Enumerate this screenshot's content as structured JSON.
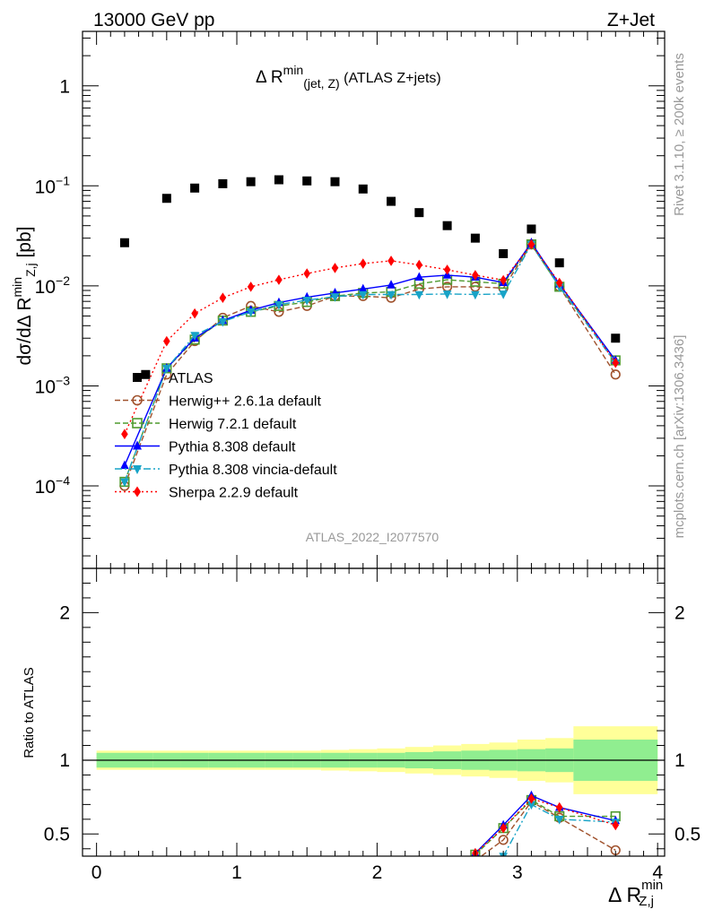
{
  "header": {
    "left": "13000 GeV pp",
    "right": "Z+Jet"
  },
  "side_text": {
    "rivet": "Rivet 3.1.10, ≥ 200k events",
    "mcplots": "mcplots.cern.ch [arXiv:1306.3436]"
  },
  "chart_data": [
    {
      "panel": "main",
      "type": "scatter",
      "title": {
        "prefix": "Δ R",
        "sup": "min",
        "sub": "(jet, Z)",
        "suffix": " (ATLAS Z+jets)"
      },
      "ylabel": {
        "prefix": "dσ/dΔ R",
        "sup": "min",
        "sub": "Z,j",
        "suffix": " [pb]"
      },
      "xlim": [
        -0.1,
        4.05
      ],
      "ylim": [
        1.5e-05,
        3.5
      ],
      "yscale": "log",
      "y_tick_labels": [
        {
          "v": 1,
          "base": "1",
          "exp": ""
        },
        {
          "v": 0.1,
          "base": "10",
          "exp": "−1"
        },
        {
          "v": 0.01,
          "base": "10",
          "exp": "−2"
        },
        {
          "v": 0.001,
          "base": "10",
          "exp": "−3"
        },
        {
          "v": 0.0001,
          "base": "10",
          "exp": "−4"
        }
      ],
      "watermark": "ATLAS_2022_I2077570",
      "legend_position": "left-middle",
      "series": [
        {
          "name": "ATLAS",
          "color": "#000000",
          "marker": "square",
          "line": "none",
          "x": [
            0.2,
            0.35,
            0.5,
            0.7,
            0.9,
            1.1,
            1.3,
            1.5,
            1.7,
            1.9,
            2.1,
            2.3,
            2.5,
            2.7,
            2.9,
            3.1,
            3.3,
            3.7
          ],
          "y": [
            0.027,
            0.0013,
            0.075,
            0.095,
            0.105,
            0.11,
            0.115,
            0.112,
            0.11,
            0.093,
            0.07,
            0.054,
            0.04,
            0.03,
            0.021,
            0.037,
            0.017,
            0.003
          ]
        },
        {
          "name": "Herwig++ 2.6.1a default",
          "color": "#a0522d",
          "marker": "circle-open",
          "line": "dashed",
          "x": [
            0.2,
            0.5,
            0.7,
            0.9,
            1.1,
            1.3,
            1.5,
            1.7,
            1.9,
            2.1,
            2.3,
            2.5,
            2.7,
            2.9,
            3.1,
            3.3,
            3.7
          ],
          "y": [
            0.0001,
            0.0013,
            0.0028,
            0.0048,
            0.0063,
            0.0055,
            0.0063,
            0.0079,
            0.0079,
            0.0076,
            0.0093,
            0.0098,
            0.0098,
            0.0095,
            0.026,
            0.0098,
            0.0013
          ]
        },
        {
          "name": "Herwig 7.2.1 default",
          "color": "#4f9a2f",
          "marker": "square-open",
          "line": "dashed",
          "x": [
            0.2,
            0.5,
            0.7,
            0.9,
            1.1,
            1.3,
            1.5,
            1.7,
            1.9,
            2.1,
            2.3,
            2.5,
            2.7,
            2.9,
            3.1,
            3.3,
            3.7
          ],
          "y": [
            0.00011,
            0.0015,
            0.0029,
            0.0045,
            0.0055,
            0.0063,
            0.0069,
            0.0079,
            0.0085,
            0.0087,
            0.0105,
            0.0115,
            0.011,
            0.0105,
            0.026,
            0.0098,
            0.0018
          ]
        },
        {
          "name": "Pythia 8.308 default",
          "color": "#0000ff",
          "marker": "triangle-up",
          "line": "solid",
          "x": [
            0.2,
            0.5,
            0.7,
            0.9,
            1.1,
            1.3,
            1.5,
            1.7,
            1.9,
            2.1,
            2.3,
            2.5,
            2.7,
            2.9,
            3.1,
            3.3,
            3.7
          ],
          "y": [
            0.00016,
            0.0015,
            0.003,
            0.0045,
            0.0057,
            0.0068,
            0.0077,
            0.0085,
            0.0093,
            0.0102,
            0.0122,
            0.0128,
            0.0122,
            0.0108,
            0.027,
            0.0104,
            0.0018
          ]
        },
        {
          "name": "Pythia 8.308 vincia-default",
          "color": "#17a3c7",
          "marker": "triangle-down",
          "line": "dashdot",
          "x": [
            0.2,
            0.5,
            0.7,
            0.9,
            1.1,
            1.3,
            1.5,
            1.7,
            1.9,
            2.1,
            2.3,
            2.5,
            2.7,
            2.9,
            3.1,
            3.3,
            3.7
          ],
          "y": [
            0.00011,
            0.0015,
            0.0032,
            0.0044,
            0.0055,
            0.0065,
            0.0072,
            0.0078,
            0.0082,
            0.0082,
            0.0082,
            0.0083,
            0.0082,
            0.0083,
            0.026,
            0.0098,
            0.0017
          ]
        },
        {
          "name": "Sherpa 2.2.9 default",
          "color": "#ff0000",
          "marker": "diamond",
          "line": "dotted",
          "x": [
            0.2,
            0.5,
            0.7,
            0.9,
            1.1,
            1.3,
            1.5,
            1.7,
            1.9,
            2.1,
            2.3,
            2.5,
            2.7,
            2.9,
            3.1,
            3.3,
            3.7
          ],
          "y": [
            0.00033,
            0.0028,
            0.0053,
            0.0076,
            0.0098,
            0.0115,
            0.0133,
            0.0151,
            0.0167,
            0.0178,
            0.0162,
            0.0145,
            0.0128,
            0.0114,
            0.026,
            0.0107,
            0.0017
          ]
        }
      ]
    },
    {
      "panel": "ratio",
      "type": "line",
      "ylabel": "Ratio to ATLAS",
      "xlabel": {
        "prefix": "Δ R",
        "sup": "min",
        "sub": "Z,j"
      },
      "xlim": [
        -0.1,
        4.05
      ],
      "ylim": [
        0.35,
        2.3
      ],
      "x_ticks": [
        0,
        1,
        2,
        3,
        4
      ],
      "y_ticks": [
        0.5,
        1,
        2
      ],
      "reference_line": 1,
      "bands": {
        "edges": [
          0.0,
          0.4,
          0.6,
          0.8,
          1.0,
          1.2,
          1.4,
          1.6,
          1.8,
          2.0,
          2.2,
          2.4,
          2.6,
          2.8,
          3.0,
          3.2,
          3.4,
          4.0
        ],
        "inner_color": "#90ee90",
        "outer_color": "#ffff99",
        "inner": [
          0.05,
          0.05,
          0.05,
          0.05,
          0.05,
          0.05,
          0.05,
          0.05,
          0.05,
          0.05,
          0.055,
          0.06,
          0.065,
          0.07,
          0.075,
          0.08,
          0.14
        ],
        "outer": [
          0.065,
          0.065,
          0.065,
          0.065,
          0.065,
          0.065,
          0.065,
          0.07,
          0.075,
          0.08,
          0.09,
          0.1,
          0.11,
          0.12,
          0.14,
          0.15,
          0.23
        ]
      },
      "series": [
        {
          "name": "Herwig++ 2.6.1a default",
          "x": [
            2.7,
            2.9,
            3.1,
            3.3,
            3.7
          ],
          "y": [
            0.32,
            0.46,
            0.72,
            0.61,
            0.39
          ]
        },
        {
          "name": "Herwig 7.2.1 default",
          "x": [
            2.7,
            2.9,
            3.1,
            3.3,
            3.7
          ],
          "y": [
            0.36,
            0.54,
            0.73,
            0.62,
            0.62
          ]
        },
        {
          "name": "Pythia 8.308 default",
          "x": [
            2.7,
            2.9,
            3.1,
            3.3,
            3.7
          ],
          "y": [
            0.37,
            0.56,
            0.76,
            0.68,
            0.59
          ]
        },
        {
          "name": "Pythia 8.308 vincia-default",
          "x": [
            2.7,
            2.9,
            3.1,
            3.3,
            3.7
          ],
          "y": [
            0.3,
            0.35,
            0.7,
            0.6,
            0.58
          ]
        },
        {
          "name": "Sherpa 2.2.9 default",
          "x": [
            2.7,
            2.9,
            3.1,
            3.3,
            3.7
          ],
          "y": [
            0.37,
            0.54,
            0.74,
            0.68,
            0.56
          ]
        }
      ]
    }
  ]
}
